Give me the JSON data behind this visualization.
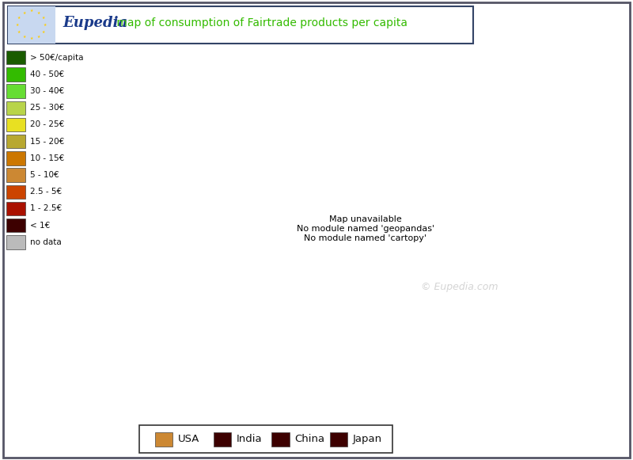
{
  "title_eupedia": "Eupedia",
  "title_rest": " map of consumption of Fairtrade products per capita",
  "title_color_eupedia": "#1a3a8a",
  "title_color_rest": "#33bb00",
  "title_bg_color": "#c8d8f0",
  "background_color": "#ffffff",
  "ocean_color": "#ffffff",
  "nodata_color": "#bbbbbb",
  "border_color": "#ffffff",
  "outer_border_color": "#334466",
  "legend_colors": [
    "#1a5c00",
    "#33bb00",
    "#66dd33",
    "#b8d44a",
    "#e8e022",
    "#b8a830",
    "#cc7700",
    "#cc8833",
    "#cc4400",
    "#aa1100",
    "#3d0000",
    "#bbbbbb"
  ],
  "legend_labels": [
    "> 50€/capita",
    "40 - 50€",
    "30 - 40€",
    "25 - 30€",
    "20 - 25€",
    "15 - 20€",
    "10 - 15€",
    "5 - 10€",
    "2.5 - 5€",
    "1 - 2.5€",
    "< 1€",
    "no data"
  ],
  "country_data": {
    "Ireland": "#1a5c00",
    "Sweden": "#33bb00",
    "Finland": "#33bb00",
    "Norway": "#cc8833",
    "Denmark": "#33bb00",
    "Netherlands": "#33bb00",
    "Belgium": "#33bb00",
    "Luxembourg": "#33bb00",
    "United Kingdom": "#66dd33",
    "Germany": "#cc8833",
    "France": "#cc7700",
    "Switzerland": "#1a5c00",
    "Austria": "#3d0000",
    "Italy": "#cc4400",
    "Spain": "#3d0000",
    "Portugal": "#cc4400",
    "Czechia": "#3d0000",
    "Czech Republic": "#3d0000",
    "Slovakia": "#3d0000",
    "Hungary": "#e8e022",
    "Estonia": "#3d0000",
    "Latvia": "#3d0000",
    "Lithuania": "#3d0000",
    "Poland": "#bbbbbb",
    "Romania": "#bbbbbb",
    "Bulgaria": "#bbbbbb",
    "Greece": "#bbbbbb",
    "Serbia": "#bbbbbb",
    "Croatia": "#bbbbbb",
    "Bosnia and Herzegovina": "#bbbbbb",
    "Bosnia and Herz.": "#bbbbbb",
    "Slovenia": "#bbbbbb",
    "Albania": "#bbbbbb",
    "Macedonia": "#bbbbbb",
    "North Macedonia": "#bbbbbb",
    "Montenegro": "#bbbbbb",
    "Kosovo": "#bbbbbb",
    "Moldova": "#bbbbbb",
    "Ukraine": "#bbbbbb",
    "Belarus": "#bbbbbb",
    "Russia": "#bbbbbb",
    "Iceland": "#bbbbbb",
    "Turkey": "#bbbbbb",
    "Cyprus": "#bbbbbb",
    "Malta": "#bbbbbb",
    "Morocco": "#bbbbbb",
    "Algeria": "#bbbbbb",
    "Tunisia": "#bbbbbb",
    "Libya": "#bbbbbb",
    "Egypt": "#bbbbbb",
    "Jordan": "#bbbbbb",
    "Israel": "#bbbbbb",
    "Lebanon": "#bbbbbb",
    "Syria": "#bbbbbb",
    "Iraq": "#bbbbbb",
    "Saudi Arabia": "#bbbbbb",
    "Kazakhstan": "#bbbbbb",
    "Iran": "#bbbbbb",
    "W. Sahara": "#bbbbbb",
    "Mauritania": "#bbbbbb",
    "Mali": "#bbbbbb",
    "Niger": "#bbbbbb",
    "Chad": "#bbbbbb",
    "Sudan": "#bbbbbb",
    "Eritrea": "#bbbbbb",
    "Djibouti": "#bbbbbb",
    "United Arab Emirates": "#bbbbbb",
    "Oman": "#bbbbbb",
    "Yemen": "#bbbbbb",
    "Kuwait": "#bbbbbb",
    "Qatar": "#bbbbbb",
    "Bahrain": "#bbbbbb",
    "Armenia": "#bbbbbb",
    "Azerbaijan": "#bbbbbb",
    "Georgia": "#bbbbbb",
    "Turkmenistan": "#bbbbbb",
    "Uzbekistan": "#bbbbbb",
    "Kyrgyzstan": "#bbbbbb",
    "Tajikistan": "#bbbbbb",
    "Afghanistan": "#bbbbbb",
    "Pakistan": "#bbbbbb"
  },
  "bottom_legend_labels": [
    "USA",
    "India",
    "China",
    "Japan"
  ],
  "bottom_legend_colors": [
    "#cc8833",
    "#3d0000",
    "#3d0000",
    "#3d0000"
  ],
  "watermark": "© Eupedia.com",
  "xlim": [
    -25,
    55
  ],
  "ylim": [
    28,
    73
  ]
}
